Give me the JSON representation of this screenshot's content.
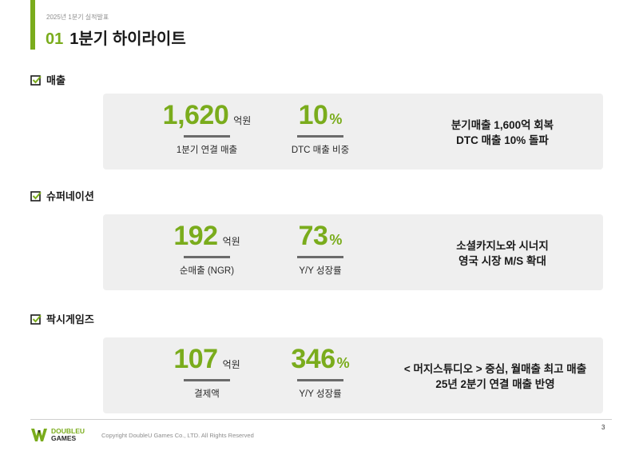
{
  "header": {
    "supertitle": "2025년 1분기 실적발표",
    "number": "01",
    "title": "1분기 하이라이트"
  },
  "sections": [
    {
      "heading": "매출",
      "metric1": {
        "value": "1,620",
        "unit": "억원",
        "caption": "1분기 연결 매출"
      },
      "metric2": {
        "value": "10",
        "unit": "%",
        "caption": "DTC 매출 비중"
      },
      "desc": [
        "분기매출 1,600억 회복",
        "DTC 매출 10% 돌파"
      ]
    },
    {
      "heading": "슈퍼네이션",
      "metric1": {
        "value": "192",
        "unit": "억원",
        "caption": "순매출 (NGR)"
      },
      "metric2": {
        "value": "73",
        "unit": "%",
        "caption": "Y/Y 성장률"
      },
      "desc": [
        "소셜카지노와 시너지",
        "영국 시장 M/S 확대"
      ]
    },
    {
      "heading": "팍시게임즈",
      "metric1": {
        "value": "107",
        "unit": "억원",
        "caption": "결제액"
      },
      "metric2": {
        "value": "346",
        "unit": "%",
        "caption": "Y/Y 성장률"
      },
      "desc": [
        "< 머지스튜디오 > 중심, 월매출 최고 매출",
        "25년 2분기 연결 매출 반영"
      ]
    }
  ],
  "footer": {
    "logo_top": "DOUBLEU",
    "logo_bottom": "GAMES",
    "copyright": "Copyright DoubleU Games Co., LTD. All Rights Reserved",
    "page_number": "3"
  },
  "colors": {
    "accent": "#7aac1c",
    "card_bg": "#efefef",
    "rule": "#6b6b6b"
  }
}
